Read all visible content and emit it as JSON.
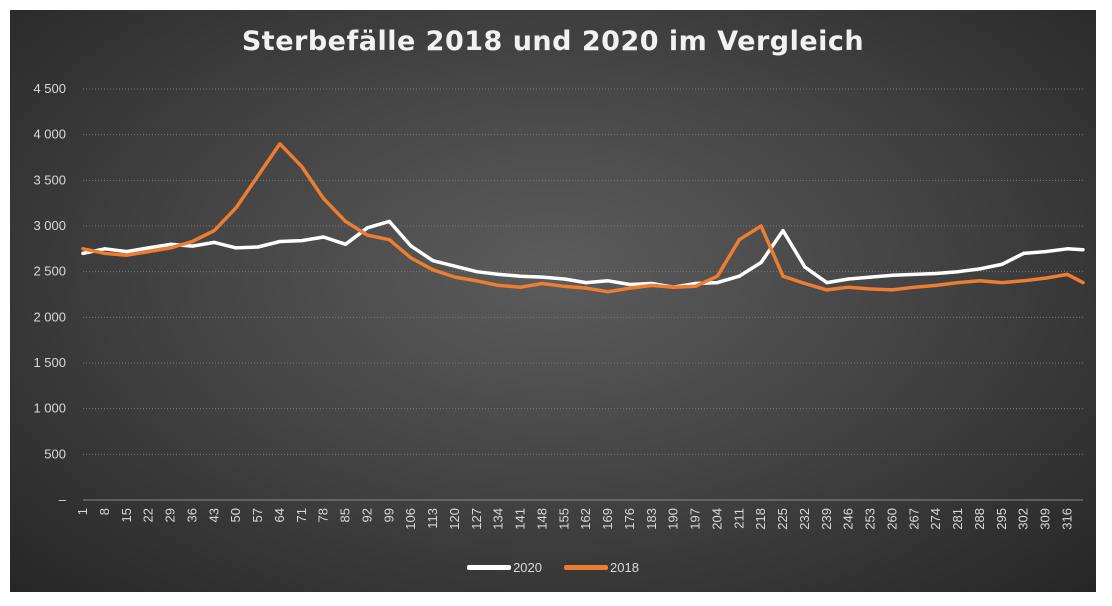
{
  "chart_data": {
    "type": "line",
    "title": "Sterbefälle 2018 und 2020 im Vergleich",
    "xlabel": "",
    "ylabel": "",
    "ylim": [
      0,
      4500
    ],
    "y_ticks": [
      0,
      500,
      1000,
      1500,
      2000,
      2500,
      3000,
      3500,
      4000,
      4500
    ],
    "y_tick_labels": [
      "–",
      "500",
      "1 000",
      "1 500",
      "2 000",
      "2 500",
      "3 000",
      "3 500",
      "4 000",
      "4 500"
    ],
    "x_range": [
      1,
      321
    ],
    "x_ticks": [
      1,
      8,
      15,
      22,
      29,
      36,
      43,
      50,
      57,
      64,
      71,
      78,
      85,
      92,
      99,
      106,
      113,
      120,
      127,
      134,
      141,
      148,
      155,
      162,
      169,
      176,
      183,
      190,
      197,
      204,
      211,
      218,
      225,
      232,
      239,
      246,
      253,
      260,
      267,
      274,
      281,
      288,
      295,
      302,
      309,
      316
    ],
    "grid": "horizontal-dotted",
    "legend_position": "bottom",
    "series": [
      {
        "name": "2020",
        "color": "#ffffff",
        "x": [
          1,
          8,
          15,
          22,
          29,
          36,
          43,
          50,
          57,
          64,
          71,
          78,
          85,
          92,
          99,
          106,
          113,
          120,
          127,
          134,
          141,
          148,
          155,
          162,
          169,
          176,
          183,
          190,
          197,
          204,
          211,
          218,
          225,
          232,
          239,
          246,
          253,
          260,
          267,
          274,
          281,
          288,
          295,
          302,
          309,
          316,
          321
        ],
        "values": [
          2700,
          2750,
          2720,
          2760,
          2800,
          2780,
          2820,
          2760,
          2770,
          2830,
          2840,
          2880,
          2800,
          2980,
          3050,
          2780,
          2620,
          2560,
          2500,
          2470,
          2450,
          2440,
          2420,
          2380,
          2400,
          2360,
          2370,
          2330,
          2370,
          2380,
          2450,
          2600,
          2950,
          2550,
          2380,
          2420,
          2440,
          2460,
          2470,
          2480,
          2500,
          2530,
          2580,
          2700,
          2720,
          2750,
          2740
        ]
      },
      {
        "name": "2018",
        "color": "#ed7d31",
        "x": [
          1,
          8,
          15,
          22,
          29,
          36,
          43,
          50,
          57,
          64,
          71,
          78,
          85,
          92,
          99,
          106,
          113,
          120,
          127,
          134,
          141,
          148,
          155,
          162,
          169,
          176,
          183,
          190,
          197,
          204,
          211,
          218,
          225,
          232,
          239,
          246,
          253,
          260,
          267,
          274,
          281,
          288,
          295,
          302,
          309,
          316,
          321
        ],
        "values": [
          2750,
          2700,
          2680,
          2720,
          2760,
          2830,
          2950,
          3200,
          3550,
          3900,
          3650,
          3300,
          3050,
          2900,
          2850,
          2650,
          2520,
          2440,
          2400,
          2350,
          2330,
          2370,
          2340,
          2320,
          2280,
          2320,
          2350,
          2330,
          2340,
          2450,
          2850,
          3000,
          2450,
          2370,
          2300,
          2330,
          2310,
          2300,
          2330,
          2350,
          2380,
          2400,
          2380,
          2400,
          2430,
          2470,
          2380
        ]
      }
    ]
  }
}
